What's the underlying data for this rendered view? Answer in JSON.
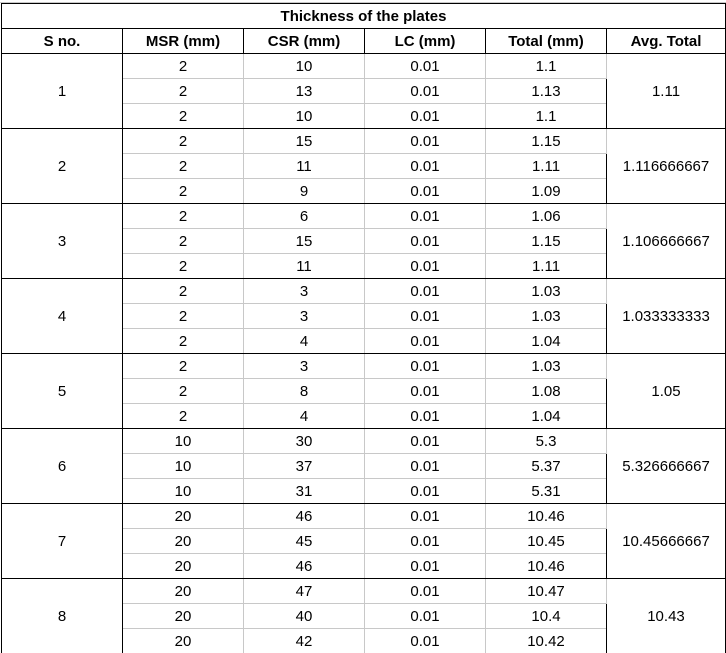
{
  "table": {
    "title": "Thickness of the plates",
    "headers": [
      "S no.",
      "MSR (mm)",
      "CSR (mm)",
      "LC (mm)",
      "Total (mm)",
      "Avg. Total"
    ],
    "groups": [
      {
        "sno": "1",
        "avg": "1.11",
        "rows": [
          {
            "msr": "2",
            "csr": "10",
            "lc": "0.01",
            "total": "1.1"
          },
          {
            "msr": "2",
            "csr": "13",
            "lc": "0.01",
            "total": "1.13"
          },
          {
            "msr": "2",
            "csr": "10",
            "lc": "0.01",
            "total": "1.1"
          }
        ]
      },
      {
        "sno": "2",
        "avg": "1.116666667",
        "rows": [
          {
            "msr": "2",
            "csr": "15",
            "lc": "0.01",
            "total": "1.15"
          },
          {
            "msr": "2",
            "csr": "11",
            "lc": "0.01",
            "total": "1.11"
          },
          {
            "msr": "2",
            "csr": "9",
            "lc": "0.01",
            "total": "1.09"
          }
        ]
      },
      {
        "sno": "3",
        "avg": "1.106666667",
        "rows": [
          {
            "msr": "2",
            "csr": "6",
            "lc": "0.01",
            "total": "1.06"
          },
          {
            "msr": "2",
            "csr": "15",
            "lc": "0.01",
            "total": "1.15"
          },
          {
            "msr": "2",
            "csr": "11",
            "lc": "0.01",
            "total": "1.11"
          }
        ]
      },
      {
        "sno": "4",
        "avg": "1.033333333",
        "rows": [
          {
            "msr": "2",
            "csr": "3",
            "lc": "0.01",
            "total": "1.03"
          },
          {
            "msr": "2",
            "csr": "3",
            "lc": "0.01",
            "total": "1.03"
          },
          {
            "msr": "2",
            "csr": "4",
            "lc": "0.01",
            "total": "1.04"
          }
        ]
      },
      {
        "sno": "5",
        "avg": "1.05",
        "rows": [
          {
            "msr": "2",
            "csr": "3",
            "lc": "0.01",
            "total": "1.03"
          },
          {
            "msr": "2",
            "csr": "8",
            "lc": "0.01",
            "total": "1.08"
          },
          {
            "msr": "2",
            "csr": "4",
            "lc": "0.01",
            "total": "1.04"
          }
        ]
      },
      {
        "sno": "6",
        "avg": "5.326666667",
        "rows": [
          {
            "msr": "10",
            "csr": "30",
            "lc": "0.01",
            "total": "5.3"
          },
          {
            "msr": "10",
            "csr": "37",
            "lc": "0.01",
            "total": "5.37"
          },
          {
            "msr": "10",
            "csr": "31",
            "lc": "0.01",
            "total": "5.31"
          }
        ]
      },
      {
        "sno": "7",
        "avg": "10.45666667",
        "rows": [
          {
            "msr": "20",
            "csr": "46",
            "lc": "0.01",
            "total": "10.46"
          },
          {
            "msr": "20",
            "csr": "45",
            "lc": "0.01",
            "total": "10.45"
          },
          {
            "msr": "20",
            "csr": "46",
            "lc": "0.01",
            "total": "10.46"
          }
        ]
      },
      {
        "sno": "8",
        "avg": "10.43",
        "rows": [
          {
            "msr": "20",
            "csr": "47",
            "lc": "0.01",
            "total": "10.47"
          },
          {
            "msr": "20",
            "csr": "40",
            "lc": "0.01",
            "total": "10.4"
          },
          {
            "msr": "20",
            "csr": "42",
            "lc": "0.01",
            "total": "10.42"
          }
        ]
      }
    ]
  }
}
